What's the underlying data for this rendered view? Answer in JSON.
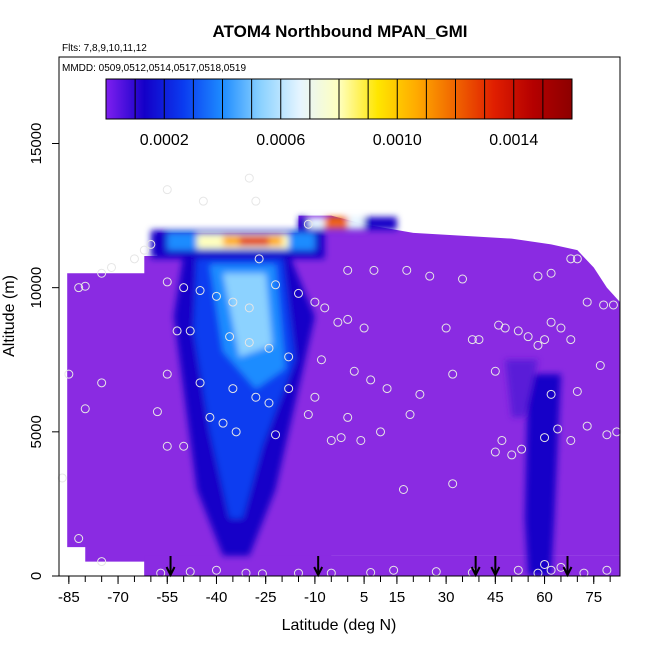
{
  "chart_data": {
    "type": "heatmap",
    "title": "ATOM4 Northbound MPAN_GMI",
    "flights_note": "Flts: 7,8,9,10,11,12",
    "dates_note": "MMDD: 0509,0512,0514,0517,0518,0519",
    "xlabel": "Latitude (deg N)",
    "ylabel": "Altitude (m)",
    "xlim": [
      -88,
      83
    ],
    "ylim": [
      0,
      18000
    ],
    "x_ticks": [
      -85,
      -70,
      -55,
      -40,
      -25,
      -10,
      5,
      15,
      30,
      45,
      60,
      75
    ],
    "y_ticks": [
      0,
      5000,
      10000,
      15000
    ],
    "colorbar": {
      "range": [
        0,
        0.0016
      ],
      "ticks": [
        0.0002,
        0.0006,
        0.001,
        0.0014
      ],
      "tick_labels": [
        "0.0002",
        "0.0006",
        "0.0010",
        "0.0014"
      ],
      "n_segments": 16,
      "colors": [
        "#7f1ff0",
        "#1400c8",
        "#0a3cf0",
        "#1e8cff",
        "#8cd2ff",
        "#e6f5ff",
        "#ffffbe",
        "#ffe600",
        "#ffaa00",
        "#f06400",
        "#e01e00",
        "#b40000",
        "#8c0000"
      ]
    },
    "fill_color": "#8a2be2",
    "descent_latitudes": [
      -54,
      -9,
      39,
      45,
      67
    ],
    "sample_points": [
      [
        -55,
        13400
      ],
      [
        -44,
        13000
      ],
      [
        -30,
        13800
      ],
      [
        -28,
        13000
      ],
      [
        -12,
        12200
      ],
      [
        -82,
        10000
      ],
      [
        -80,
        10050
      ],
      [
        -75,
        10500
      ],
      [
        -72,
        10700
      ],
      [
        -65,
        11000
      ],
      [
        -62,
        11300
      ],
      [
        -60,
        11500
      ],
      [
        -55,
        10200
      ],
      [
        -50,
        10000
      ],
      [
        -45,
        9900
      ],
      [
        -40,
        9700
      ],
      [
        -35,
        9500
      ],
      [
        -30,
        9300
      ],
      [
        -27,
        11000
      ],
      [
        -22,
        10100
      ],
      [
        -15,
        9800
      ],
      [
        -10,
        9500
      ],
      [
        -7,
        9300
      ],
      [
        0,
        10600
      ],
      [
        8,
        10600
      ],
      [
        18,
        10600
      ],
      [
        25,
        10400
      ],
      [
        35,
        10300
      ],
      [
        58,
        10400
      ],
      [
        62,
        10500
      ],
      [
        68,
        11000
      ],
      [
        70,
        11000
      ],
      [
        73,
        9500
      ],
      [
        78,
        9400
      ],
      [
        81,
        9400
      ],
      [
        -52,
        8500
      ],
      [
        -48,
        8500
      ],
      [
        -36,
        8300
      ],
      [
        -30,
        8100
      ],
      [
        -24,
        7900
      ],
      [
        -18,
        7600
      ],
      [
        -8,
        7500
      ],
      [
        -3,
        8800
      ],
      [
        0,
        8900
      ],
      [
        5,
        8600
      ],
      [
        30,
        8600
      ],
      [
        38,
        8200
      ],
      [
        40,
        8200
      ],
      [
        46,
        8700
      ],
      [
        48,
        8600
      ],
      [
        52,
        8500
      ],
      [
        55,
        8300
      ],
      [
        58,
        8000
      ],
      [
        60,
        8200
      ],
      [
        62,
        8800
      ],
      [
        65,
        8600
      ],
      [
        68,
        8200
      ],
      [
        -85,
        7000
      ],
      [
        -75,
        6700
      ],
      [
        -55,
        7000
      ],
      [
        -45,
        6700
      ],
      [
        -35,
        6500
      ],
      [
        -28,
        6200
      ],
      [
        -24,
        6000
      ],
      [
        -18,
        6500
      ],
      [
        -10,
        6200
      ],
      [
        2,
        7100
      ],
      [
        7,
        6800
      ],
      [
        12,
        6500
      ],
      [
        22,
        6300
      ],
      [
        32,
        7000
      ],
      [
        45,
        7100
      ],
      [
        62,
        6300
      ],
      [
        70,
        6400
      ],
      [
        77,
        7300
      ],
      [
        -80,
        5800
      ],
      [
        -58,
        5700
      ],
      [
        -42,
        5500
      ],
      [
        -38,
        5300
      ],
      [
        -34,
        5000
      ],
      [
        -22,
        4900
      ],
      [
        -12,
        5600
      ],
      [
        0,
        5500
      ],
      [
        -2,
        4800
      ],
      [
        -5,
        4700
      ],
      [
        4,
        4700
      ],
      [
        10,
        5000
      ],
      [
        19,
        5600
      ],
      [
        45,
        4300
      ],
      [
        47,
        4700
      ],
      [
        50,
        4200
      ],
      [
        53,
        4400
      ],
      [
        60,
        4800
      ],
      [
        64,
        5100
      ],
      [
        68,
        4700
      ],
      [
        73,
        5200
      ],
      [
        79,
        4900
      ],
      [
        82,
        5000
      ],
      [
        -55,
        4500
      ],
      [
        -50,
        4500
      ],
      [
        17,
        3000
      ],
      [
        32,
        3200
      ],
      [
        -87,
        3400
      ],
      [
        -82,
        1300
      ],
      [
        -75,
        500
      ],
      [
        -57,
        100
      ],
      [
        -48,
        150
      ],
      [
        -40,
        200
      ],
      [
        -31,
        100
      ],
      [
        -26,
        80
      ],
      [
        -15,
        100
      ],
      [
        -5,
        100
      ],
      [
        7,
        120
      ],
      [
        14,
        200
      ],
      [
        27,
        150
      ],
      [
        38,
        120
      ],
      [
        52,
        200
      ],
      [
        58,
        100
      ],
      [
        60,
        400
      ],
      [
        62,
        200
      ],
      [
        65,
        300
      ],
      [
        72,
        100
      ],
      [
        79,
        200
      ]
    ]
  }
}
